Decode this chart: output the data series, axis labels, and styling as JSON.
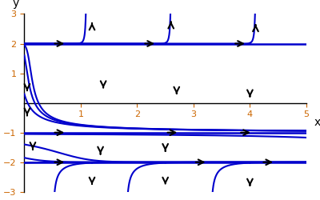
{
  "xmin": 0,
  "xmax": 5,
  "ymin": -3,
  "ymax": 3,
  "equilibria": [
    -2,
    -1,
    2
  ],
  "line_color": "#0000cc",
  "bg_color": "#ffffff",
  "axis_color": "#000000",
  "tick_color": "#cc6600",
  "figsize": [
    4.0,
    2.5
  ],
  "dpi": 100
}
